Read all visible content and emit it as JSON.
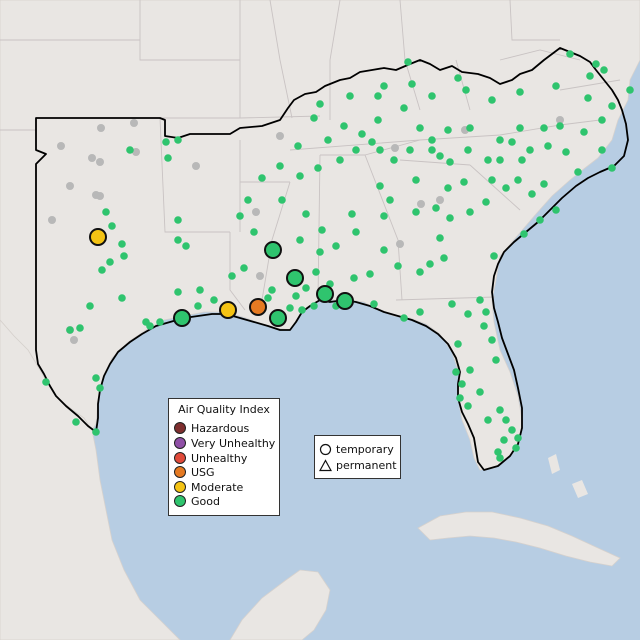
{
  "colors": {
    "water": "#b7cde3",
    "land": "#e9e6e3",
    "boundary": "#c9c3c3",
    "hazardous": "#7e2f2f",
    "very_unhealthy": "#8f4fa6",
    "unhealthy": "#e04a3a",
    "usg": "#e57a22",
    "moderate": "#f4c314",
    "good": "#2fc46e",
    "inactive": "#b8b8b8"
  },
  "legend_aqi": {
    "title": "Air Quality Index",
    "items": [
      {
        "label": "Hazardous",
        "color": "#7e2f2f"
      },
      {
        "label": "Very Unhealthy",
        "color": "#8f4fa6"
      },
      {
        "label": "Unhealthy",
        "color": "#e04a3a"
      },
      {
        "label": "USG",
        "color": "#e57a22"
      },
      {
        "label": "Moderate",
        "color": "#f4c314"
      },
      {
        "label": "Good",
        "color": "#2fc46e"
      }
    ]
  },
  "legend_type": {
    "items": [
      {
        "label": "temporary",
        "shape": "circle"
      },
      {
        "label": "permanent",
        "shape": "triangle"
      }
    ]
  }
}
